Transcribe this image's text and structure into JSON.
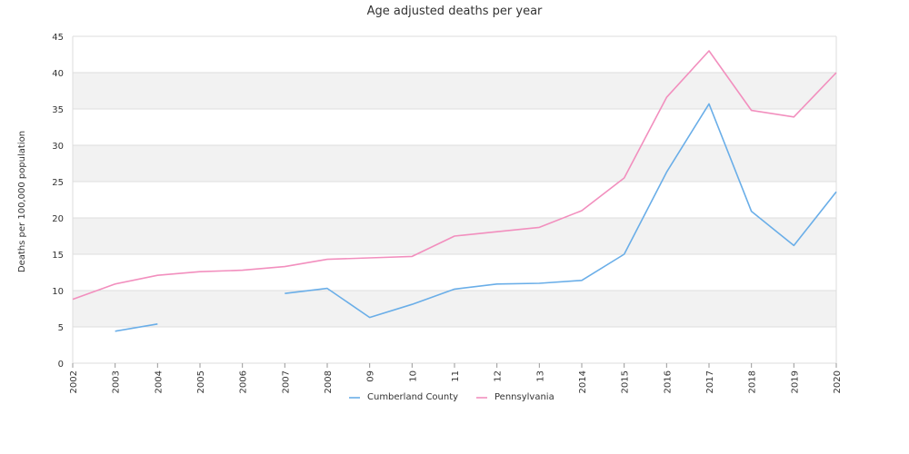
{
  "chart_data": {
    "type": "line",
    "title": "Age adjusted deaths per year",
    "ylabel": "Deaths per 100,000 population",
    "xlabel": "",
    "ylim": [
      0,
      45
    ],
    "yticks": [
      0,
      5,
      10,
      15,
      20,
      25,
      30,
      35,
      40,
      45
    ],
    "categories": [
      "2002",
      "2003",
      "2004",
      "2005",
      "2006",
      "2007",
      "2008",
      "09",
      "10",
      "11",
      "12",
      "13",
      "2014",
      "2015",
      "2016",
      "2017",
      "2018",
      "2019",
      "2020"
    ],
    "grid": true,
    "legend_position": "bottom",
    "series": [
      {
        "name": "Cumberland County",
        "color": "#6aaee8",
        "values": [
          null,
          4.4,
          5.4,
          null,
          null,
          9.6,
          10.3,
          6.3,
          8.1,
          10.2,
          10.9,
          11.0,
          11.4,
          15.0,
          26.3,
          35.7,
          20.9,
          16.2,
          23.6
        ]
      },
      {
        "name": "Pennsylvania",
        "color": "#f28fbe",
        "values": [
          8.8,
          10.9,
          12.1,
          12.6,
          12.8,
          13.3,
          14.3,
          14.5,
          14.7,
          17.5,
          18.1,
          18.7,
          21.0,
          25.5,
          36.6,
          43.0,
          34.8,
          33.9,
          40.0
        ]
      }
    ]
  }
}
